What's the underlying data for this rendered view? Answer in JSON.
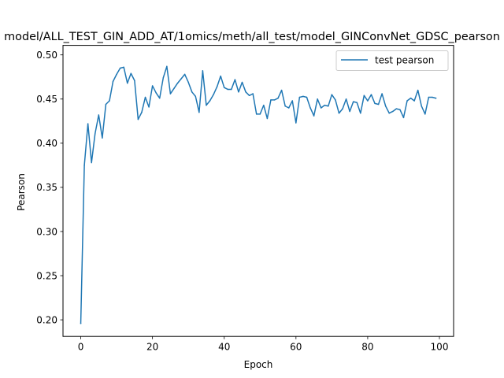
{
  "chart_data": {
    "type": "line",
    "title": "model/ALL_TEST_GIN_ADD_AT/1omics/meth/all_test/model_GINConvNet_GDSC_pearson",
    "xlabel": "Epoch",
    "ylabel": "Pearson",
    "xlim": [
      -4.95,
      103.95
    ],
    "ylim": [
      0.1812,
      0.5108
    ],
    "xticks": [
      0,
      20,
      40,
      60,
      80,
      100
    ],
    "yticks": [
      0.2,
      0.25,
      0.3,
      0.35,
      0.4,
      0.45,
      0.5
    ],
    "ytick_labels": [
      "0.20",
      "0.25",
      "0.30",
      "0.35",
      "0.40",
      "0.45",
      "0.50"
    ],
    "grid": false,
    "legend_position": "upper right",
    "series": [
      {
        "name": "test pearson",
        "color": "#1f77b4",
        "x": [
          0,
          1,
          2,
          3,
          4,
          5,
          6,
          7,
          8,
          9,
          10,
          11,
          12,
          13,
          14,
          15,
          16,
          17,
          18,
          19,
          20,
          21,
          22,
          23,
          24,
          25,
          26,
          27,
          28,
          29,
          30,
          31,
          32,
          33,
          34,
          35,
          36,
          37,
          38,
          39,
          40,
          41,
          42,
          43,
          44,
          45,
          46,
          47,
          48,
          49,
          50,
          51,
          52,
          53,
          54,
          55,
          56,
          57,
          58,
          59,
          60,
          61,
          62,
          63,
          64,
          65,
          66,
          67,
          68,
          69,
          70,
          71,
          72,
          73,
          74,
          75,
          76,
          77,
          78,
          79,
          80,
          81,
          82,
          83,
          84,
          85,
          86,
          87,
          88,
          89,
          90,
          91,
          92,
          93,
          94,
          95,
          96,
          97,
          98,
          99
        ],
        "values": [
          0.196,
          0.375,
          0.422,
          0.378,
          0.411,
          0.432,
          0.406,
          0.444,
          0.448,
          0.47,
          0.478,
          0.485,
          0.486,
          0.468,
          0.479,
          0.471,
          0.427,
          0.435,
          0.452,
          0.441,
          0.465,
          0.457,
          0.451,
          0.474,
          0.487,
          0.456,
          0.462,
          0.468,
          0.473,
          0.478,
          0.469,
          0.458,
          0.453,
          0.435,
          0.482,
          0.443,
          0.448,
          0.455,
          0.464,
          0.476,
          0.463,
          0.461,
          0.461,
          0.472,
          0.458,
          0.469,
          0.458,
          0.454,
          0.456,
          0.433,
          0.433,
          0.443,
          0.428,
          0.449,
          0.449,
          0.451,
          0.46,
          0.442,
          0.44,
          0.448,
          0.423,
          0.452,
          0.453,
          0.452,
          0.44,
          0.431,
          0.45,
          0.44,
          0.443,
          0.442,
          0.455,
          0.449,
          0.434,
          0.439,
          0.45,
          0.436,
          0.447,
          0.446,
          0.434,
          0.454,
          0.448,
          0.455,
          0.445,
          0.444,
          0.456,
          0.442,
          0.434,
          0.436,
          0.439,
          0.438,
          0.429,
          0.448,
          0.451,
          0.448,
          0.46,
          0.442,
          0.433,
          0.452,
          0.452,
          0.451
        ]
      }
    ]
  }
}
